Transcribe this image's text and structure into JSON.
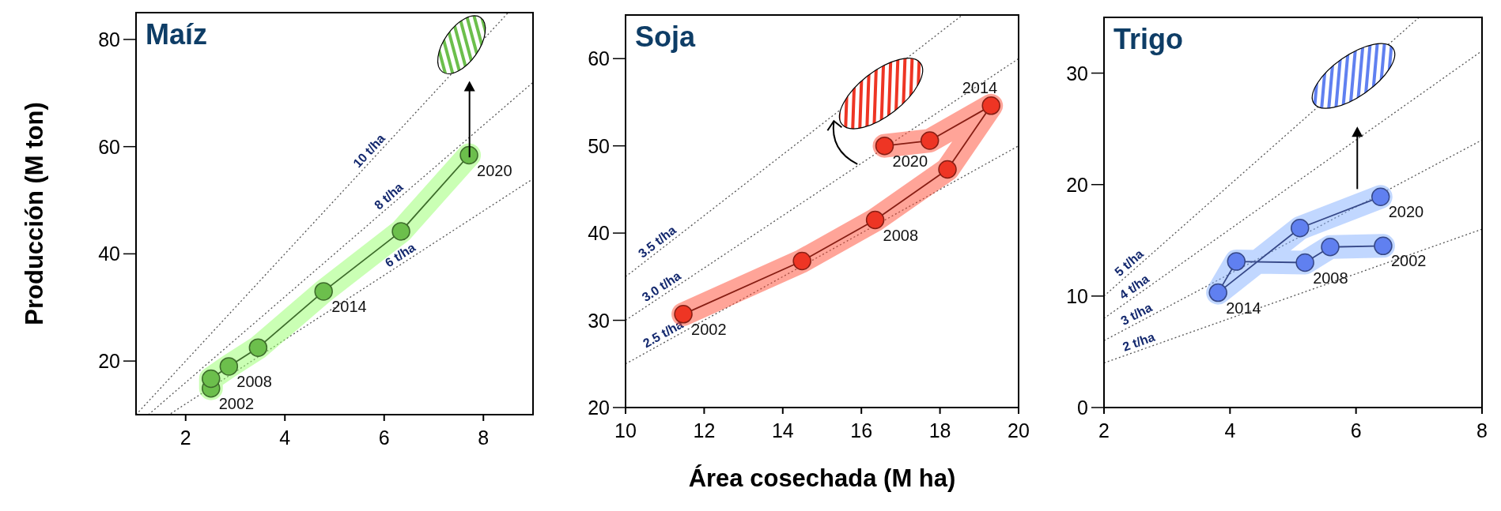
{
  "chart_data": [
    {
      "type": "line",
      "title": "Maíz",
      "ylabel": "Producción (M ton)",
      "xlim": [
        1,
        9
      ],
      "xticks": [
        2,
        4,
        6,
        8
      ],
      "ylim": [
        10,
        85
      ],
      "yticks": [
        20,
        40,
        60,
        80
      ],
      "grid": false,
      "series": [
        {
          "name": "10 t/ha",
          "color": "#555555",
          "line_style": "dotted",
          "marker": "none",
          "x": [
            1,
            8.5
          ],
          "values": [
            10,
            85
          ]
        },
        {
          "name": "8 t/ha",
          "color": "#555555",
          "line_style": "dotted",
          "marker": "none",
          "x": [
            1.25,
            9
          ],
          "values": [
            10,
            72
          ]
        },
        {
          "name": "6 t/ha",
          "color": "#555555",
          "line_style": "dotted",
          "marker": "none",
          "x": [
            1.7,
            9
          ],
          "values": [
            10.2,
            54
          ]
        },
        {
          "color": "#6cbf4c",
          "marker": "circle",
          "line_style": "solid",
          "x": [
            2.51,
            2.51,
            2.87,
            3.46,
            4.78,
            6.34,
            7.71
          ],
          "values": [
            14.9,
            16.7,
            19.0,
            22.5,
            33.0,
            44.2,
            58.4
          ]
        }
      ],
      "annotations": [
        {
          "text": "2002",
          "x": 2.51,
          "y": 14.9
        },
        {
          "text": "2008",
          "x": 2.87,
          "y": 19.0
        },
        {
          "text": "2014",
          "x": 4.78,
          "y": 33.0
        },
        {
          "text": "2020",
          "x": 7.71,
          "y": 58.4
        }
      ]
    },
    {
      "type": "line",
      "title": "Soja",
      "xlabel": "Área cosechada (M ha)",
      "xlim": [
        10,
        20
      ],
      "xticks": [
        10,
        12,
        14,
        16,
        18,
        20
      ],
      "ylim": [
        20,
        65
      ],
      "yticks": [
        20,
        30,
        40,
        50,
        60
      ],
      "grid": false,
      "series": [
        {
          "name": "3.5 t/ha",
          "color": "#555555",
          "line_style": "dotted",
          "marker": "none",
          "x": [
            10,
            18.57
          ],
          "values": [
            35,
            65
          ]
        },
        {
          "name": "3.0 t/ha",
          "color": "#555555",
          "line_style": "dotted",
          "marker": "none",
          "x": [
            10,
            20
          ],
          "values": [
            30,
            60
          ]
        },
        {
          "name": "2.5 t/ha",
          "color": "#555555",
          "line_style": "dotted",
          "marker": "none",
          "x": [
            10,
            20
          ],
          "values": [
            25,
            50
          ]
        },
        {
          "color": "#ee3524",
          "marker": "circle",
          "line_style": "solid",
          "x": [
            11.47,
            14.49,
            16.35,
            18.19,
            19.3,
            17.74,
            16.59
          ],
          "values": [
            30.7,
            36.8,
            41.5,
            47.3,
            54.6,
            50.6,
            50.0
          ]
        }
      ],
      "annotations": [
        {
          "text": "2002",
          "x": 11.47,
          "y": 30.7
        },
        {
          "text": "2008",
          "x": 16.35,
          "y": 41.5
        },
        {
          "text": "2014",
          "x": 19.3,
          "y": 54.6
        },
        {
          "text": "2020",
          "x": 16.59,
          "y": 50.0
        }
      ]
    },
    {
      "type": "line",
      "title": "Trigo",
      "xlim": [
        2,
        8
      ],
      "xticks": [
        2,
        4,
        6,
        8
      ],
      "ylim": [
        0,
        35
      ],
      "yticks": [
        0,
        10,
        20,
        30
      ],
      "grid": false,
      "series": [
        {
          "name": "5 t/ha",
          "color": "#555555",
          "line_style": "dotted",
          "marker": "none",
          "x": [
            2,
            7
          ],
          "values": [
            10,
            35
          ]
        },
        {
          "name": "4 t/ha",
          "color": "#555555",
          "line_style": "dotted",
          "marker": "none",
          "x": [
            2,
            8
          ],
          "values": [
            8,
            32
          ]
        },
        {
          "name": "3 t/ha",
          "color": "#555555",
          "line_style": "dotted",
          "marker": "none",
          "x": [
            2,
            8
          ],
          "values": [
            6,
            24
          ]
        },
        {
          "name": "2 t/ha",
          "color": "#555555",
          "line_style": "dotted",
          "marker": "none",
          "x": [
            2,
            8
          ],
          "values": [
            4,
            16
          ]
        },
        {
          "color": "#6080f0",
          "marker": "circle",
          "line_style": "solid",
          "x": [
            6.43,
            5.59,
            5.19,
            4.1,
            3.81,
            5.11,
            6.39
          ],
          "values": [
            14.5,
            14.4,
            13.0,
            13.1,
            10.3,
            16.1,
            18.9
          ]
        }
      ],
      "annotations": [
        {
          "text": "2002",
          "x": 6.43,
          "y": 14.5
        },
        {
          "text": "2008",
          "x": 5.19,
          "y": 13.0
        },
        {
          "text": "2014",
          "x": 3.81,
          "y": 10.3
        },
        {
          "text": "2020",
          "x": 6.39,
          "y": 18.9
        }
      ]
    }
  ]
}
